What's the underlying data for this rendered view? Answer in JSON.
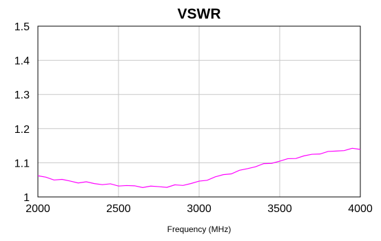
{
  "chart_data": {
    "type": "line",
    "title": "VSWR",
    "xlabel": "Frequency (MHz)",
    "ylabel": "",
    "xlim": [
      2000,
      4000
    ],
    "ylim": [
      1,
      1.5
    ],
    "x_ticks": [
      "2000",
      "2500",
      "3000",
      "3500",
      "4000"
    ],
    "y_ticks": [
      "1",
      "1.1",
      "1.2",
      "1.3",
      "1.4",
      "1.5"
    ],
    "grid": true,
    "series": [
      {
        "color": "#ff00ff",
        "x": [
          2000,
          2050,
          2100,
          2150,
          2200,
          2250,
          2300,
          2350,
          2400,
          2450,
          2500,
          2550,
          2600,
          2650,
          2700,
          2750,
          2800,
          2850,
          2900,
          2950,
          3000,
          3050,
          3100,
          3150,
          3200,
          3250,
          3300,
          3350,
          3400,
          3450,
          3500,
          3550,
          3600,
          3650,
          3700,
          3750,
          3800,
          3850,
          3900,
          3950,
          4000
        ],
        "values": [
          1.062,
          1.056,
          1.052,
          1.05,
          1.046,
          1.043,
          1.042,
          1.04,
          1.037,
          1.036,
          1.034,
          1.033,
          1.031,
          1.03,
          1.03,
          1.03,
          1.03,
          1.033,
          1.035,
          1.04,
          1.044,
          1.051,
          1.058,
          1.064,
          1.07,
          1.076,
          1.083,
          1.09,
          1.095,
          1.1,
          1.105,
          1.11,
          1.115,
          1.119,
          1.124,
          1.128,
          1.131,
          1.135,
          1.137,
          1.14,
          1.141
        ]
      }
    ]
  }
}
